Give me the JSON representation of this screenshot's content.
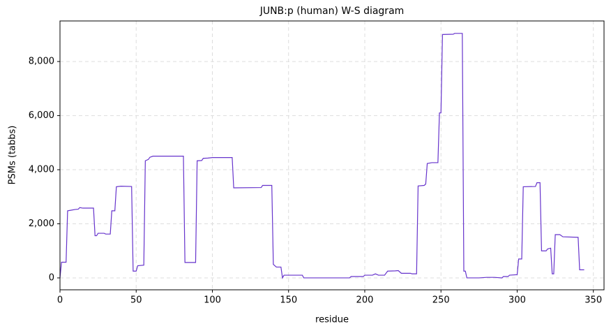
{
  "chart_data": {
    "type": "line",
    "title": "JUNB:p (human) W-S diagram",
    "x_label": "residue",
    "y_label": "PSMs (tabbs)",
    "x": [
      0,
      1,
      4,
      5,
      7,
      10,
      12,
      13,
      15,
      22,
      23,
      24,
      25,
      29,
      30,
      33,
      34,
      36,
      37,
      40,
      47,
      48,
      50,
      51,
      55,
      56,
      58,
      59,
      61,
      81,
      82,
      89,
      90,
      93,
      94,
      97,
      100,
      113,
      114,
      132,
      133,
      139,
      140,
      142,
      145,
      146,
      147,
      159,
      160,
      190,
      191,
      199,
      200,
      205,
      207,
      209,
      213,
      215,
      220,
      222,
      224,
      230,
      231,
      234,
      235,
      239,
      240,
      241,
      244,
      248,
      249,
      250,
      251,
      258,
      259,
      264,
      265,
      266,
      267,
      275,
      280,
      285,
      290,
      291,
      294,
      295,
      300,
      301,
      303,
      304,
      312,
      313,
      315,
      316,
      319,
      320,
      322,
      323,
      324,
      325,
      328,
      330,
      340,
      341,
      344
    ],
    "series": [
      {
        "name": "PSMs",
        "color": "#6633cc",
        "values": [
          0,
          580,
          580,
          2480,
          2500,
          2530,
          2540,
          2600,
          2580,
          2580,
          1560,
          1560,
          1650,
          1650,
          1620,
          1620,
          2480,
          2480,
          3370,
          3390,
          3380,
          250,
          250,
          450,
          470,
          4330,
          4380,
          4460,
          4500,
          4500,
          570,
          570,
          4330,
          4340,
          4420,
          4430,
          4450,
          4450,
          3330,
          3340,
          3420,
          3420,
          500,
          400,
          400,
          0,
          100,
          100,
          0,
          0,
          50,
          50,
          100,
          100,
          150,
          100,
          100,
          250,
          260,
          270,
          170,
          170,
          150,
          150,
          3400,
          3420,
          3470,
          4230,
          4260,
          4260,
          6100,
          6100,
          9000,
          9010,
          9040,
          9040,
          250,
          250,
          0,
          0,
          20,
          20,
          0,
          50,
          50,
          100,
          120,
          700,
          700,
          3370,
          3380,
          3520,
          3520,
          1000,
          1000,
          1070,
          1100,
          150,
          150,
          1600,
          1600,
          1520,
          1500,
          300,
          300
        ]
      }
    ],
    "xlim": [
      0,
      357
    ],
    "ylim": [
      -440,
      9500
    ],
    "xticks": [
      0,
      50,
      100,
      150,
      200,
      250,
      300,
      350
    ],
    "yticks": [
      0,
      {
        "value": 2000,
        "label": "2,000"
      },
      {
        "value": 4000,
        "label": "4,000"
      },
      {
        "value": 6000,
        "label": "6,000"
      },
      {
        "value": 8000,
        "label": "8,000"
      }
    ],
    "grid": true
  }
}
